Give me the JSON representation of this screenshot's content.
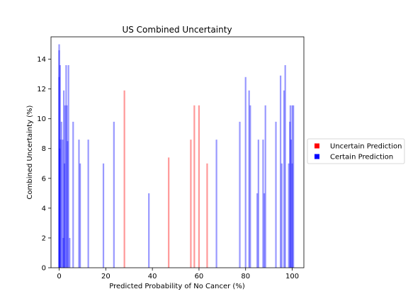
{
  "chart_data": {
    "type": "bar",
    "title": "US Combined Uncertainty",
    "xlabel": "Predicted Probability of No Cancer (%)",
    "ylabel": "Combined Uncertainty (%)",
    "xlim": [
      -3.5,
      105
    ],
    "ylim": [
      0,
      15.5
    ],
    "xticks": [
      0,
      20,
      40,
      60,
      80,
      100
    ],
    "yticks": [
      0,
      2,
      4,
      6,
      8,
      10,
      12,
      14
    ],
    "grid": false,
    "legend_placement": "outside-right",
    "series": [
      {
        "name": "Uncertain Prediction",
        "color": "#ff0000",
        "alpha": 0.4,
        "x": [
          28,
          47,
          56.5,
          58,
          60,
          63.5
        ],
        "values": [
          11.9,
          7.4,
          8.6,
          10.9,
          10.9,
          7.0
        ]
      },
      {
        "name": "Certain Prediction",
        "color": "#0000ff",
        "alpha": 0.4,
        "x": [
          0,
          0,
          0,
          0.2,
          0.4,
          0.6,
          1.0,
          1.5,
          1.8,
          2.0,
          2.3,
          2.5,
          3.0,
          3.3,
          3.6,
          4.0,
          4.5,
          6.0,
          8.5,
          9.0,
          12.5,
          19,
          23.5,
          38.5,
          67.5,
          77.5,
          80,
          81.5,
          82,
          85,
          85.5,
          87.5,
          88,
          88.5,
          93,
          95,
          95.5,
          96.5,
          97,
          98.5,
          99,
          99.2,
          99.5,
          100,
          100,
          100.5
        ],
        "values": [
          12.8,
          14.6,
          15.0,
          8.0,
          13.6,
          8.6,
          9.8,
          8.6,
          2.0,
          11.9,
          7.0,
          10.9,
          13.6,
          10.9,
          8.5,
          13.6,
          2.0,
          9.8,
          8.6,
          7.0,
          8.6,
          7.0,
          9.8,
          5.0,
          8.6,
          9.8,
          12.8,
          11.9,
          10.9,
          5.0,
          8.6,
          8.6,
          5.0,
          10.9,
          9.8,
          12.9,
          7.0,
          11.9,
          13.6,
          7.0,
          9.8,
          10.9,
          8.6,
          10.9,
          7.0,
          10.9
        ]
      }
    ],
    "legend": [
      "Uncertain Prediction",
      "Certain Prediction"
    ]
  }
}
